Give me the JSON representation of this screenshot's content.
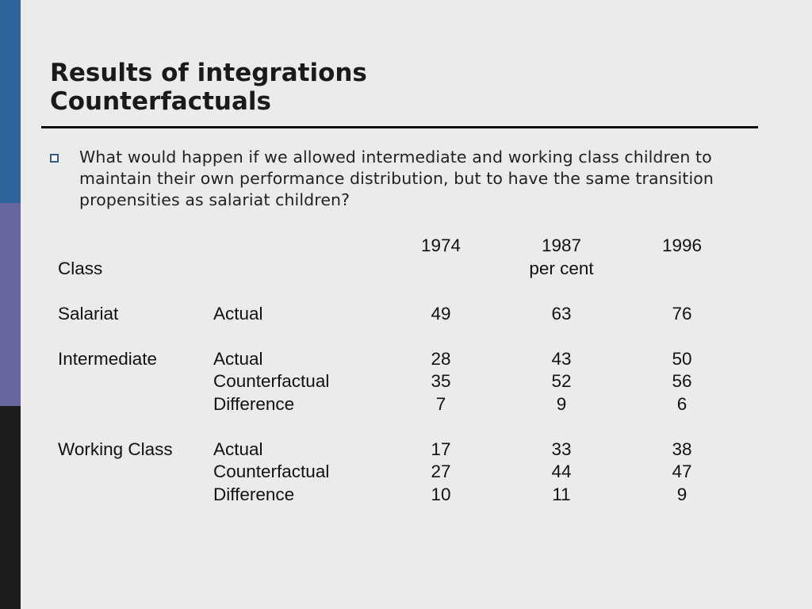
{
  "theme": {
    "sidebar_colors": [
      "#2e6399",
      "#6864a0",
      "#1c1c1c"
    ],
    "background": "#ebebeb",
    "bullet_color": "#2f5d95"
  },
  "slide": {
    "title_line1": "Results of integrations",
    "title_line2": "Counterfactuals",
    "bullet": "What would happen if we allowed intermediate and working class children to maintain their own performance distribution, but to have the same transition propensities as salariat children?"
  },
  "table": {
    "years": [
      "1974",
      "1987",
      "1996"
    ],
    "class_header": "Class",
    "unit": "per cent",
    "groups": [
      {
        "class": "Salariat",
        "rows": [
          {
            "type": "Actual",
            "values": [
              "49",
              "63",
              "76"
            ]
          }
        ]
      },
      {
        "class": "Intermediate",
        "rows": [
          {
            "type": "Actual",
            "values": [
              "28",
              "43",
              "50"
            ]
          },
          {
            "type": "Counterfactual",
            "values": [
              "35",
              "52",
              "56"
            ]
          },
          {
            "type": "Difference",
            "values": [
              "7",
              "9",
              "6"
            ]
          }
        ]
      },
      {
        "class": "Working Class",
        "rows": [
          {
            "type": "Actual",
            "values": [
              "17",
              "33",
              "38"
            ]
          },
          {
            "type": "Counterfactual",
            "values": [
              "27",
              "44",
              "47"
            ]
          },
          {
            "type": "Difference",
            "values": [
              "10",
              "11",
              "9"
            ]
          }
        ]
      }
    ]
  }
}
